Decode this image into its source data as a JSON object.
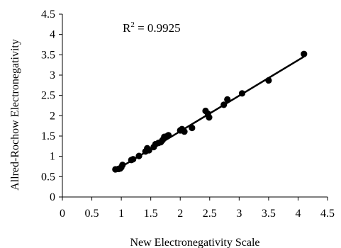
{
  "chart_data": {
    "type": "scatter",
    "xlabel": "New Electronegativity Scale",
    "ylabel": "Allred-Rochow Electronegativity",
    "xlim": [
      0,
      4.5
    ],
    "ylim": [
      0,
      4.5
    ],
    "xticks": [
      "0",
      "0.5",
      "1",
      "1.5",
      "2",
      "2.5",
      "3",
      "3.5",
      "4",
      "4.5"
    ],
    "yticks": [
      "0",
      "0.5",
      "1",
      "1.5",
      "2",
      "2.5",
      "3",
      "3.5",
      "4",
      "4.5"
    ],
    "annotation": {
      "prefix": "R",
      "sup": "2",
      "value": " = 0.9925"
    },
    "grid": false,
    "points": [
      [
        0.9,
        0.68
      ],
      [
        0.95,
        0.69
      ],
      [
        0.98,
        0.7
      ],
      [
        1.0,
        0.73
      ],
      [
        1.02,
        0.79
      ],
      [
        1.17,
        0.91
      ],
      [
        1.2,
        0.93
      ],
      [
        1.3,
        1.01
      ],
      [
        1.41,
        1.12
      ],
      [
        1.44,
        1.2
      ],
      [
        1.47,
        1.15
      ],
      [
        1.55,
        1.23
      ],
      [
        1.58,
        1.3
      ],
      [
        1.63,
        1.33
      ],
      [
        1.67,
        1.35
      ],
      [
        1.7,
        1.4
      ],
      [
        1.73,
        1.48
      ],
      [
        1.78,
        1.5
      ],
      [
        1.8,
        1.52
      ],
      [
        2.0,
        1.64
      ],
      [
        2.03,
        1.67
      ],
      [
        2.07,
        1.61
      ],
      [
        2.2,
        1.7
      ],
      [
        2.43,
        2.12
      ],
      [
        2.47,
        2.05
      ],
      [
        2.49,
        1.96
      ],
      [
        2.74,
        2.27
      ],
      [
        2.8,
        2.4
      ],
      [
        3.05,
        2.55
      ],
      [
        3.5,
        2.87
      ],
      [
        4.1,
        3.52
      ]
    ],
    "trendline": {
      "x": [
        0.9,
        4.1
      ],
      "y": [
        0.655,
        3.455
      ]
    },
    "colors": {
      "marker": "#000000",
      "line": "#000000"
    }
  }
}
